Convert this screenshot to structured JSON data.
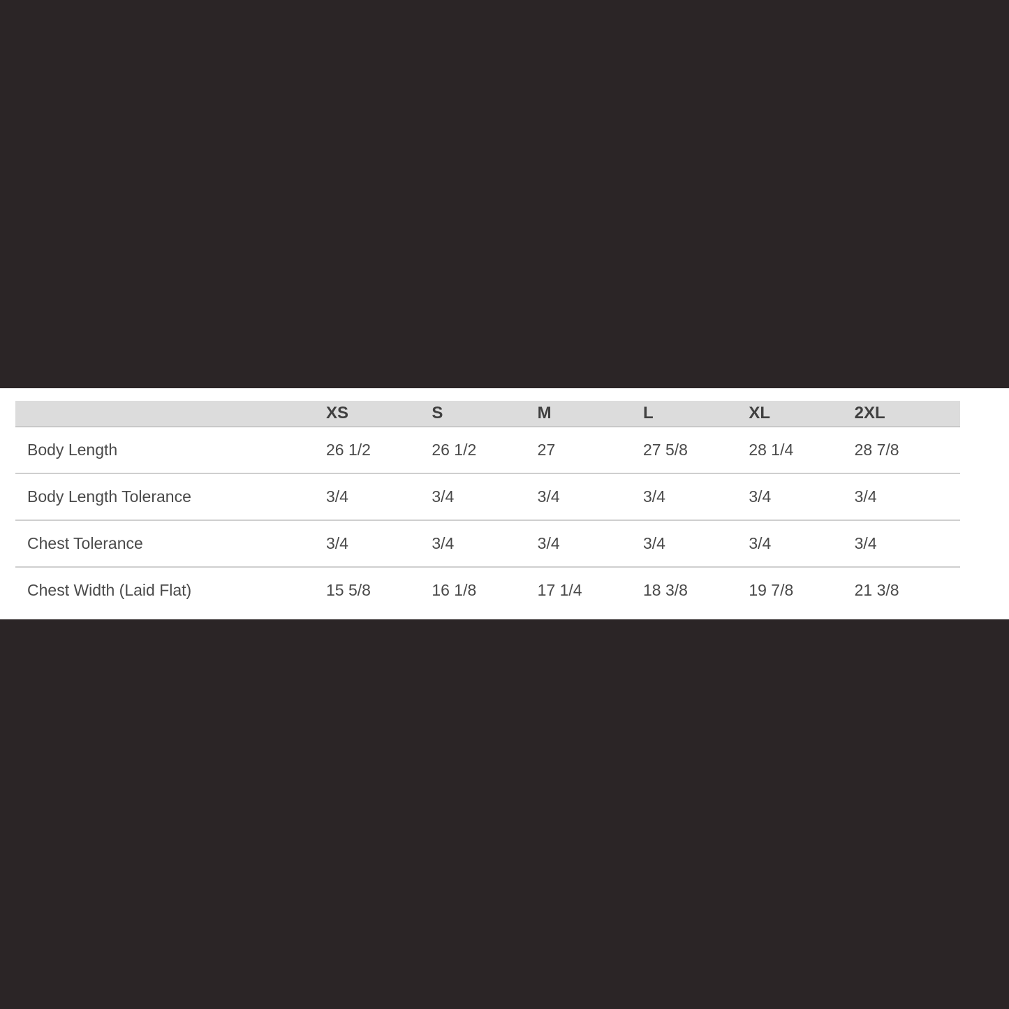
{
  "size_chart": {
    "columns": [
      "",
      "XS",
      "S",
      "M",
      "L",
      "XL",
      "2XL"
    ],
    "rows": [
      {
        "label": "Body Length",
        "values": [
          "26 1/2",
          "26 1/2",
          "27",
          "27 5/8",
          "28 1/4",
          "28 7/8"
        ]
      },
      {
        "label": "Body Length Tolerance",
        "values": [
          "3/4",
          "3/4",
          "3/4",
          "3/4",
          "3/4",
          "3/4"
        ]
      },
      {
        "label": "Chest Tolerance",
        "values": [
          "3/4",
          "3/4",
          "3/4",
          "3/4",
          "3/4",
          "3/4"
        ]
      },
      {
        "label": "Chest Width (Laid Flat)",
        "values": [
          "15 5/8",
          "16 1/8",
          "17 1/4",
          "18 3/8",
          "19 7/8",
          "21 3/8"
        ]
      }
    ]
  },
  "colors": {
    "background": "#2b2526",
    "header": "#dcdcdc",
    "text": "#4a4a4a"
  }
}
